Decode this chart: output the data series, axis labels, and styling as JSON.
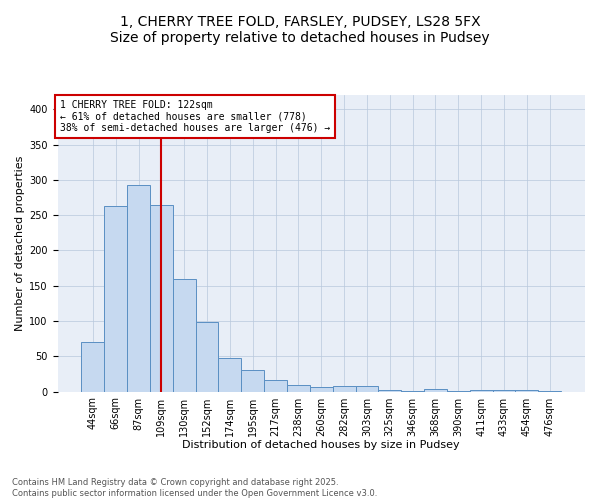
{
  "title1": "1, CHERRY TREE FOLD, FARSLEY, PUDSEY, LS28 5FX",
  "title2": "Size of property relative to detached houses in Pudsey",
  "xlabel": "Distribution of detached houses by size in Pudsey",
  "ylabel": "Number of detached properties",
  "categories": [
    "44sqm",
    "66sqm",
    "87sqm",
    "109sqm",
    "130sqm",
    "152sqm",
    "174sqm",
    "195sqm",
    "217sqm",
    "238sqm",
    "260sqm",
    "282sqm",
    "303sqm",
    "325sqm",
    "346sqm",
    "368sqm",
    "390sqm",
    "411sqm",
    "433sqm",
    "454sqm",
    "476sqm"
  ],
  "values": [
    70,
    263,
    293,
    265,
    160,
    98,
    48,
    30,
    17,
    10,
    7,
    8,
    8,
    2,
    1,
    4,
    1,
    2,
    2,
    2,
    1
  ],
  "bar_color": "#c6d9f0",
  "bar_edge_color": "#5a8fc3",
  "redline_index": 3,
  "annotation_line1": "1 CHERRY TREE FOLD: 122sqm",
  "annotation_line2": "← 61% of detached houses are smaller (778)",
  "annotation_line3": "38% of semi-detached houses are larger (476) →",
  "annotation_box_color": "#ffffff",
  "annotation_box_edge": "#cc0000",
  "redline_color": "#cc0000",
  "footer1": "Contains HM Land Registry data © Crown copyright and database right 2025.",
  "footer2": "Contains public sector information licensed under the Open Government Licence v3.0.",
  "background_color": "#e8eef7",
  "ylim": [
    0,
    420
  ],
  "title_fontsize": 10,
  "axis_label_fontsize": 8,
  "tick_fontsize": 7,
  "annotation_fontsize": 7,
  "footer_fontsize": 6
}
